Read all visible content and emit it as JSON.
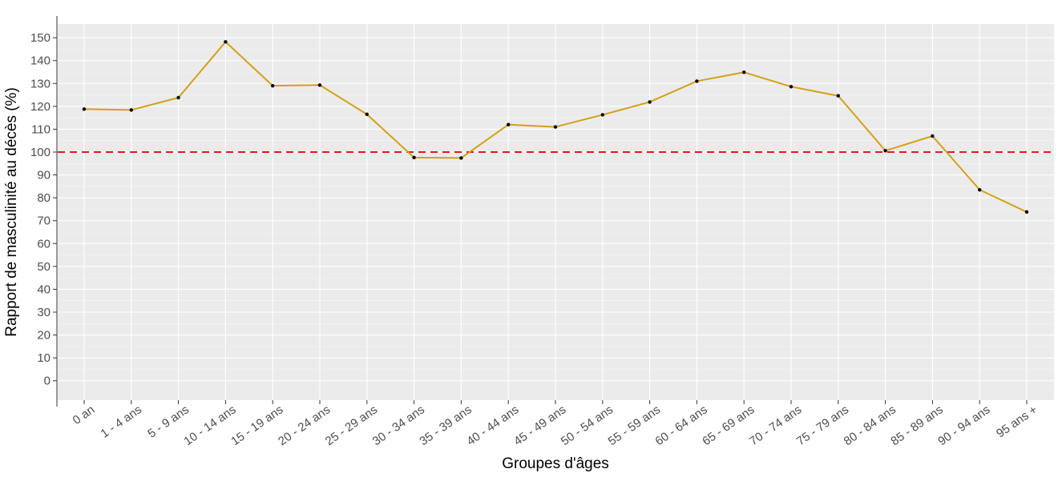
{
  "chart_data": {
    "type": "line",
    "xlabel": "Groupes d'âges",
    "ylabel": "Rapport de masculinité au décès (%)",
    "categories": [
      "0 an",
      "1 - 4 ans",
      "5 - 9 ans",
      "10 - 14 ans",
      "15 - 19 ans",
      "20 - 24 ans",
      "25 - 29 ans",
      "30 - 34 ans",
      "35 - 39 ans",
      "40 - 44 ans",
      "45 - 49 ans",
      "50 - 54 ans",
      "55 - 59 ans",
      "60 - 64 ans",
      "65 - 69 ans",
      "70 - 74 ans",
      "75 - 79 ans",
      "80 - 84 ans",
      "85 - 89 ans",
      "90 - 94 ans",
      "95 ans +"
    ],
    "series": [
      {
        "values": [
          118.8,
          118.4,
          123.8,
          148.2,
          129.0,
          129.3,
          116.5,
          97.6,
          97.4,
          112.0,
          111.0,
          116.3,
          121.9,
          131.0,
          134.9,
          128.6,
          124.6,
          100.6,
          107.0,
          83.5,
          73.8
        ],
        "color": "#D4A017"
      }
    ],
    "reference_line": {
      "y": 100,
      "style": "dashed",
      "color": "#E41A1C"
    },
    "yticks": [
      0,
      10,
      20,
      30,
      40,
      50,
      60,
      70,
      80,
      90,
      100,
      110,
      120,
      130,
      140,
      150
    ],
    "ylim": [
      -8.5,
      156
    ],
    "grid": true,
    "panel_background": "#EBEBEB",
    "point_color": "#000000"
  }
}
